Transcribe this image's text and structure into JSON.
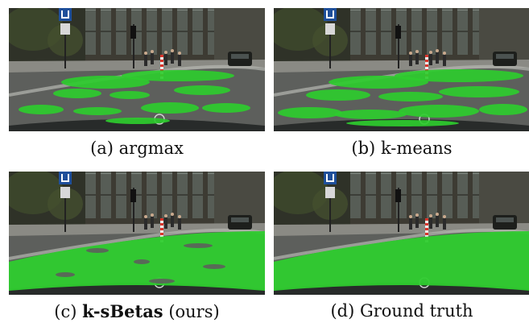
{
  "figure": {
    "panels": [
      {
        "id": "a",
        "prefix": "(a)",
        "name": "argmax",
        "suffix": "",
        "bold": false,
        "mask_coverage": "partial-patchy"
      },
      {
        "id": "b",
        "prefix": "(b)",
        "name": "k-means",
        "suffix": "",
        "bold": false,
        "mask_coverage": "partial-patchy"
      },
      {
        "id": "c",
        "prefix": "(c)",
        "name": "k-sBetas",
        "suffix": "(ours)",
        "bold": true,
        "mask_coverage": "mostly-full"
      },
      {
        "id": "d",
        "prefix": "(d)",
        "name": "Ground truth",
        "suffix": "",
        "bold": false,
        "mask_coverage": "full"
      }
    ],
    "colors": {
      "mask": "#2ecc2e",
      "road": "#5d5f5c",
      "building": "#3d3b33",
      "sky_glass": "#6d7a72",
      "sidewalk": "#8a8a84",
      "sign_blue": "#1f4f9a",
      "car_hood": "#1e2221"
    }
  }
}
